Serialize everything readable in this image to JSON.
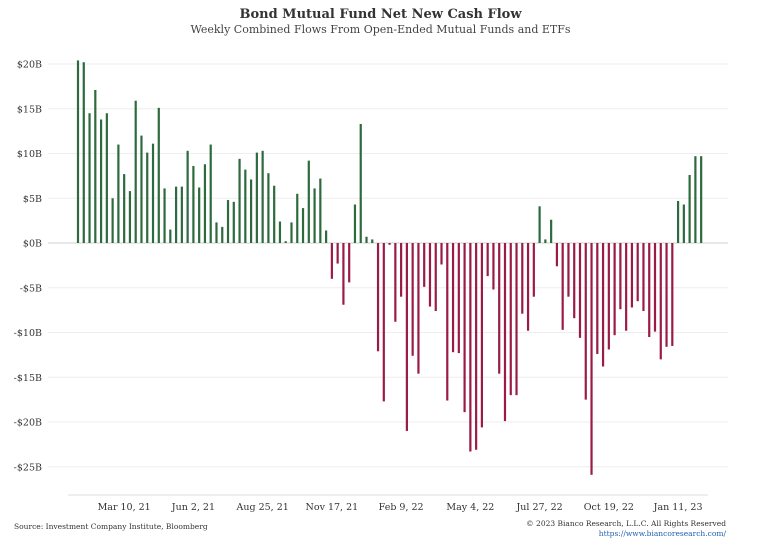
{
  "chart_data": {
    "type": "bar",
    "title": "Bond Mutual Fund Net New Cash Flow",
    "subtitle": "Weekly Combined Flows From Open-Ended Mutual Funds and ETFs",
    "xlabel": "",
    "ylabel": "",
    "ylim": [
      -28,
      20.5
    ],
    "yticks": [
      20,
      15,
      10,
      5,
      0,
      -5,
      -10,
      -15,
      -20,
      -25
    ],
    "ytick_labels": [
      "$20B",
      "$15B",
      "$10B",
      "$5B",
      "$0B",
      "-$5B",
      "-$10B",
      "-$15B",
      "-$20B",
      "-$25B"
    ],
    "xtick_labels": [
      "Mar 10, 21",
      "Jun 2, 21",
      "Aug 25, 21",
      "Nov 17, 21",
      "Feb 9, 22",
      "May 4, 22",
      "Jul 27, 22",
      "Oct 19, 22",
      "Jan 11, 23"
    ],
    "xtick_index": [
      8,
      20,
      32,
      44,
      56,
      68,
      80,
      92,
      104
    ],
    "grid": true,
    "positive_color": "#2d6a3e",
    "negative_color": "#9b1b47",
    "values": [
      20.4,
      20.2,
      14.5,
      17.1,
      13.8,
      14.5,
      5.0,
      11.0,
      7.7,
      5.8,
      15.9,
      12.0,
      10.1,
      11.1,
      15.1,
      6.1,
      1.5,
      6.3,
      6.3,
      10.3,
      8.6,
      6.2,
      8.8,
      11.0,
      2.3,
      1.8,
      4.8,
      4.6,
      9.4,
      8.2,
      7.1,
      10.1,
      10.3,
      7.8,
      6.4,
      2.4,
      0.2,
      2.3,
      5.5,
      3.9,
      9.2,
      6.1,
      7.2,
      1.4,
      -4.0,
      -2.3,
      -6.9,
      -4.4,
      4.3,
      13.3,
      0.7,
      0.4,
      -12.1,
      -17.7,
      -0.2,
      -8.8,
      -6.0,
      -21.0,
      -12.6,
      -14.6,
      -4.9,
      -7.1,
      -7.6,
      -2.4,
      -17.6,
      -12.2,
      -12.3,
      -18.9,
      -23.3,
      -23.1,
      -20.6,
      -3.7,
      -5.2,
      -14.6,
      -19.9,
      -17.0,
      -17.0,
      -7.9,
      -9.8,
      -6.0,
      4.1,
      0.4,
      2.6,
      -2.6,
      -9.7,
      -6.0,
      -8.4,
      -10.6,
      -17.5,
      -25.9,
      -12.4,
      -13.8,
      -11.9,
      -10.3,
      -7.4,
      -9.8,
      -7.2,
      -6.5,
      -7.6,
      -10.5,
      -9.9,
      -13.0,
      -11.6,
      -11.5,
      4.7,
      4.3,
      7.6,
      9.7,
      9.7
    ]
  },
  "footer": {
    "source": "Source: Investment Company Institute, Bloomberg",
    "copyright": "© 2023 Bianco Research, L.L.C. All Rights Reserved",
    "url": "https://www.biancoresearch.com/"
  }
}
